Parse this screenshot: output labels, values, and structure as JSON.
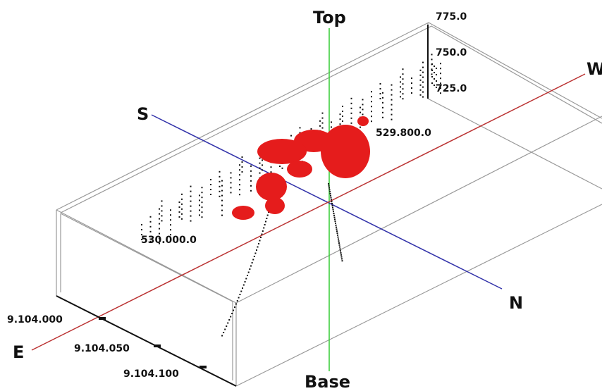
{
  "directions": {
    "top": "Top",
    "base": "Base",
    "south": "S",
    "north": "N",
    "east": "E",
    "west": "W"
  },
  "elevation_labels": [
    "775.0",
    "750.0",
    "725.0"
  ],
  "easting_labels": [
    "529.800.0",
    "530.000.0"
  ],
  "northing_labels": [
    "9.104.000",
    "9.104.050",
    "9.104.100"
  ]
}
